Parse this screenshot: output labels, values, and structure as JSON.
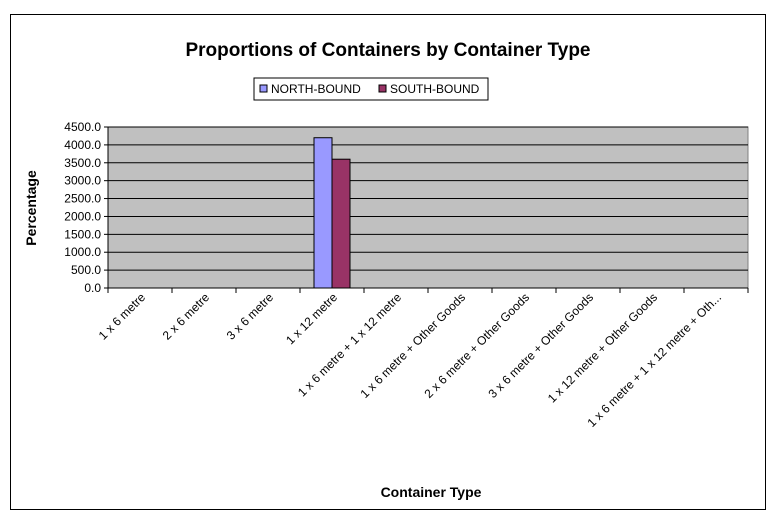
{
  "chart_data": {
    "type": "bar",
    "title": "Proportions of Containers by Container Type",
    "xlabel": "Container Type",
    "ylabel": "Percentage",
    "ylim": [
      0,
      4500
    ],
    "yticks": [
      "0.0",
      "500.0",
      "1000.0",
      "1500.0",
      "2000.0",
      "2500.0",
      "3000.0",
      "3500.0",
      "4000.0",
      "4500.0"
    ],
    "categories": [
      "1 x 6 metre",
      "2 x 6 metre",
      "3 x 6 metre",
      "1 x 12 metre",
      "1 x 6 metre + 1 x 12 metre",
      "1 x 6 metre + Other Goods",
      "2 x 6 metre + Other Goods",
      "3 x 6 metre + Other Goods",
      "1 x 12 metre + Other Goods",
      "1 x 6 metre + 1 x 12 metre + Oth..."
    ],
    "series": [
      {
        "name": "NORTH-BOUND",
        "color": "#9999ff",
        "values": [
          0,
          0,
          0,
          4200,
          0,
          0,
          0,
          0,
          0,
          0
        ]
      },
      {
        "name": "SOUTH-BOUND",
        "color": "#993366",
        "values": [
          0,
          0,
          0,
          3600,
          0,
          0,
          0,
          0,
          0,
          0
        ]
      }
    ],
    "plot_background": "#c0c0c0",
    "grid": true,
    "legend_position": "top-center"
  }
}
